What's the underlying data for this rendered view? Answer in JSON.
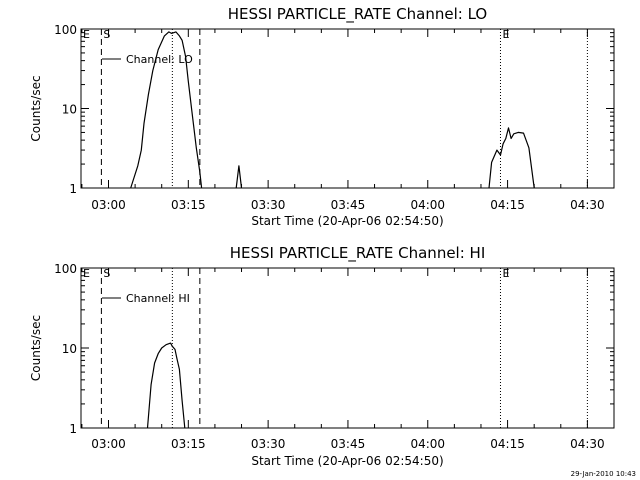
{
  "chart_data": [
    {
      "type": "line",
      "title": "HESSI PARTICLE_RATE Channel: LO",
      "xlabel": "Start Time (20-Apr-06 02:54:50)",
      "ylabel": "Counts/sec",
      "y_scale": "log",
      "ylim": [
        1,
        100
      ],
      "xlim": [
        "02:54:50",
        "04:35:00"
      ],
      "y_ticks": [
        "1",
        "10",
        "100"
      ],
      "x_ticks": [
        "03:00",
        "03:15",
        "03:30",
        "03:45",
        "04:00",
        "04:15",
        "04:30"
      ],
      "legend": "Channel: LO",
      "legend_placement": "top-left",
      "grid": false,
      "markers": [
        {
          "label": "E",
          "time": "02:54:50",
          "style": "none"
        },
        {
          "label": "S",
          "time": "02:58:40",
          "style": "dashed"
        },
        {
          "label": "",
          "time": "03:12:00",
          "style": "dotted"
        },
        {
          "label": "",
          "time": "03:17:10",
          "style": "dashed"
        },
        {
          "label": "E",
          "time": "04:13:40",
          "style": "dotted"
        },
        {
          "label": "",
          "time": "04:30:00",
          "style": "dotted"
        }
      ],
      "series": [
        {
          "name": "Channel: LO",
          "segments": [
            {
              "x": [
                "03:04:10",
                "03:05:30",
                "03:06:10",
                "03:06:40",
                "03:07:30",
                "03:08:20",
                "03:09:20",
                "03:10:30",
                "03:11:20",
                "03:11:50",
                "03:12:40",
                "03:13:20",
                "03:13:50",
                "03:14:30",
                "03:15:00",
                "03:15:40",
                "03:16:30",
                "03:17:10",
                "03:17:30"
              ],
              "y": [
                1,
                1.9,
                3.0,
                6.5,
                15,
                30,
                55,
                82,
                92,
                88,
                92,
                82,
                72,
                45,
                22,
                9.2,
                3.2,
                1.6,
                1
              ]
            },
            {
              "x": [
                "03:24:00",
                "03:24:30",
                "03:25:00"
              ],
              "y": [
                1,
                1.9,
                1
              ]
            },
            {
              "x": [
                "04:11:30",
                "04:12:00",
                "04:13:00",
                "04:13:40",
                "04:14:10",
                "04:14:40",
                "04:15:10",
                "04:15:40",
                "04:16:10",
                "04:17:00",
                "04:18:00",
                "04:19:00",
                "04:20:00"
              ],
              "y": [
                1,
                2.1,
                3.0,
                2.6,
                3.6,
                4.2,
                5.7,
                4.2,
                4.8,
                5.0,
                4.9,
                3.2,
                1
              ]
            }
          ]
        }
      ]
    },
    {
      "type": "line",
      "title": "HESSI PARTICLE_RATE Channel: HI",
      "xlabel": "Start Time (20-Apr-06 02:54:50)",
      "ylabel": "Counts/sec",
      "y_scale": "log",
      "ylim": [
        1,
        100
      ],
      "xlim": [
        "02:54:50",
        "04:35:00"
      ],
      "y_ticks": [
        "1",
        "10",
        "100"
      ],
      "x_ticks": [
        "03:00",
        "03:15",
        "03:30",
        "03:45",
        "04:00",
        "04:15",
        "04:30"
      ],
      "legend": "Channel: HI",
      "legend_placement": "top-left",
      "grid": false,
      "markers": [
        {
          "label": "E",
          "time": "02:54:50",
          "style": "none"
        },
        {
          "label": "S",
          "time": "02:58:40",
          "style": "dashed"
        },
        {
          "label": "",
          "time": "03:12:00",
          "style": "dotted"
        },
        {
          "label": "",
          "time": "03:17:10",
          "style": "dashed"
        },
        {
          "label": "E",
          "time": "04:13:40",
          "style": "dotted"
        },
        {
          "label": "",
          "time": "04:30:00",
          "style": "dotted"
        }
      ],
      "series": [
        {
          "name": "Channel: HI",
          "segments": [
            {
              "x": [
                "03:07:20",
                "03:08:00",
                "03:08:40",
                "03:09:20",
                "03:10:00",
                "03:10:50",
                "03:11:40",
                "03:12:00",
                "03:12:30",
                "03:12:50",
                "03:13:20",
                "03:13:50",
                "03:14:20"
              ],
              "y": [
                1,
                3.5,
                6.5,
                8.5,
                10.0,
                11.0,
                11.5,
                10.5,
                9.6,
                7.5,
                5.4,
                2.2,
                1
              ]
            }
          ]
        }
      ]
    }
  ],
  "footer": {
    "timestamp": "29-Jan-2010 10:43"
  }
}
